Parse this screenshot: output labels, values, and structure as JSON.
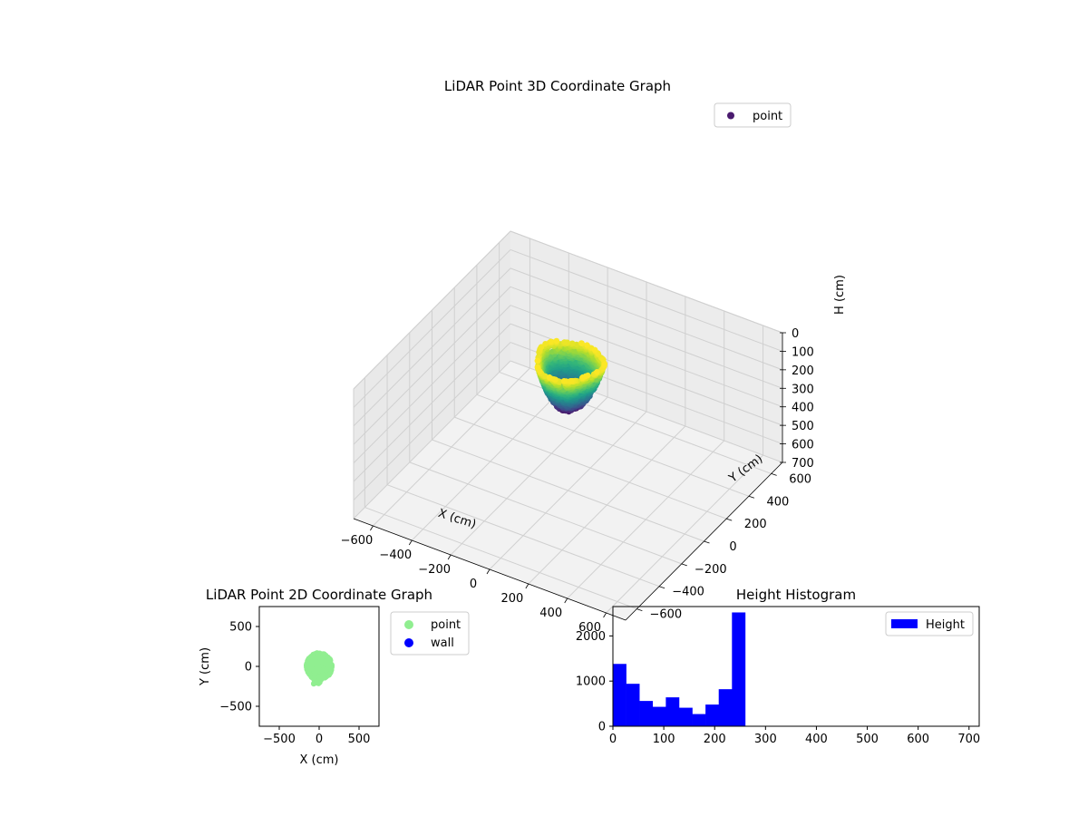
{
  "chart_data": [
    {
      "type": "scatter3d",
      "title": "LiDAR Point 3D Coordinate Graph",
      "xlabel": "X (cm)",
      "ylabel": "Y (cm)",
      "zlabel": "H (cm)",
      "xlim": [
        -700,
        700
      ],
      "ylim": [
        -700,
        700
      ],
      "zlim": [
        0,
        700
      ],
      "z_inverted": true,
      "xticks": [
        "−600",
        "−400",
        "−200",
        "0",
        "200",
        "400",
        "600"
      ],
      "yticks": [
        "−600",
        "−400",
        "−200",
        "0",
        "200",
        "400",
        "600"
      ],
      "zticks": [
        "0",
        "100",
        "200",
        "300",
        "400",
        "500",
        "600",
        "700"
      ],
      "grid": true,
      "legend": {
        "placement": "top-right",
        "entries": [
          {
            "name": "point",
            "color": "#4a1a6e"
          }
        ]
      },
      "colormap": "viridis",
      "point_cloud": {
        "center_x": 0,
        "center_y": 0,
        "radius": 150,
        "h_min": 0,
        "h_max": 260
      }
    },
    {
      "type": "scatter",
      "title": "LiDAR Point 2D Coordinate Graph",
      "xlabel": "X (cm)",
      "ylabel": "Y (cm)",
      "xlim": [
        -750,
        750
      ],
      "ylim": [
        -750,
        750
      ],
      "xticks": [
        -500,
        0,
        500
      ],
      "yticks": [
        -500,
        0,
        500
      ],
      "legend": {
        "placement": "outside-right",
        "entries": [
          {
            "name": "point",
            "color": "#90ee90"
          },
          {
            "name": "wall",
            "color": "#0000ff"
          }
        ]
      },
      "series": [
        {
          "name": "point",
          "color": "#90ee90",
          "cloud": {
            "center_x": 0,
            "center_y": 0,
            "radius_x": 160,
            "radius_y": 170,
            "tail_y": -220
          }
        },
        {
          "name": "wall",
          "color": "#0000ff",
          "points": []
        }
      ]
    },
    {
      "type": "bar",
      "title": "Height Histogram",
      "xlim": [
        0,
        720
      ],
      "ylim": [
        0,
        2650
      ],
      "xticks": [
        0,
        100,
        200,
        300,
        400,
        500,
        600,
        700
      ],
      "yticks": [
        0,
        1000,
        2000
      ],
      "bin_edges": [
        0,
        26,
        52,
        78,
        104,
        130,
        156,
        182,
        208,
        234,
        260
      ],
      "series": [
        {
          "name": "Height",
          "color": "#0000ff",
          "values": [
            1380,
            940,
            560,
            430,
            640,
            410,
            270,
            480,
            820,
            2520
          ]
        }
      ],
      "legend": {
        "placement": "top-right",
        "entries": [
          {
            "name": "Height",
            "color": "#0000ff"
          }
        ]
      }
    }
  ]
}
